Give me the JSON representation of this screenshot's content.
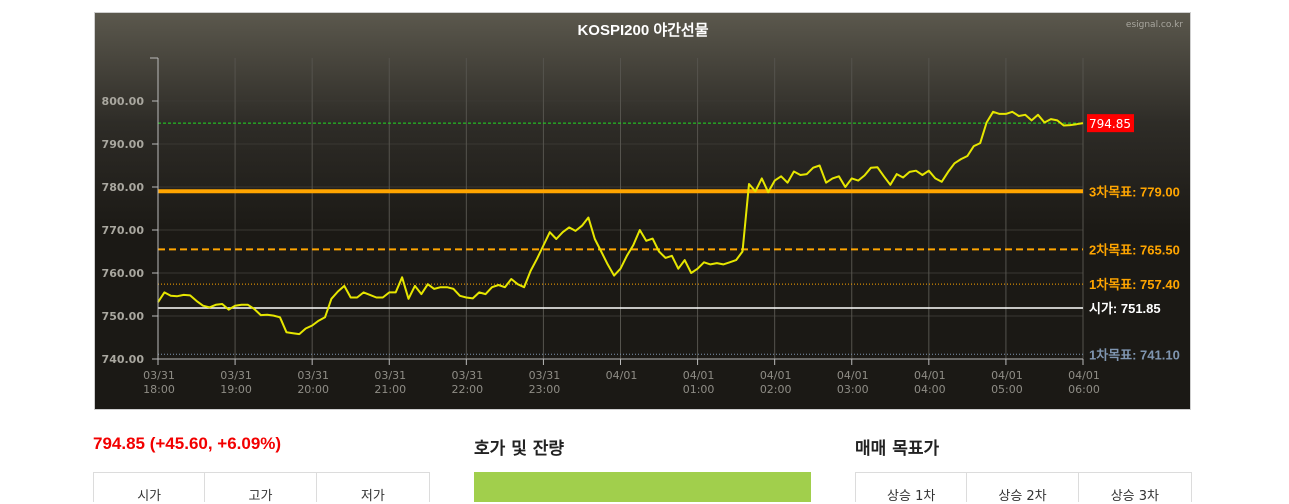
{
  "chart": {
    "title": "KOSPI200 야간선물",
    "watermark": "esignal.co.kr"
  },
  "chart_data": {
    "type": "line",
    "title": "KOSPI200 야간선물",
    "ylim": [
      740,
      810
    ],
    "yticks": [
      "740.00",
      "750.00",
      "760.00",
      "770.00",
      "780.00",
      "790.00",
      "800.00"
    ],
    "ytick_values": [
      740,
      750,
      760,
      770,
      780,
      790,
      800
    ],
    "xticks": [
      {
        "date": "03/31",
        "time": "18:00"
      },
      {
        "date": "03/31",
        "time": "19:00"
      },
      {
        "date": "03/31",
        "time": "20:00"
      },
      {
        "date": "03/31",
        "time": "21:00"
      },
      {
        "date": "03/31",
        "time": "22:00"
      },
      {
        "date": "03/31",
        "time": "23:00"
      },
      {
        "date": "04/01",
        "time": ""
      },
      {
        "date": "04/01",
        "time": "01:00"
      },
      {
        "date": "04/01",
        "time": "02:00"
      },
      {
        "date": "04/01",
        "time": "03:00"
      },
      {
        "date": "04/01",
        "time": "04:00"
      },
      {
        "date": "04/01",
        "time": "05:00"
      },
      {
        "date": "04/01",
        "time": "06:00"
      }
    ],
    "grid": true,
    "line_color": "#e6e600",
    "series_y": [
      753.2,
      755.5,
      754.7,
      754.6,
      754.9,
      754.8,
      753.5,
      752.4,
      752,
      752.6,
      752.8,
      751.5,
      752.4,
      752.6,
      752.6,
      751.6,
      750.2,
      750.3,
      750.1,
      749.7,
      746.2,
      746,
      745.8,
      747.1,
      747.8,
      748.9,
      749.7,
      754,
      755.7,
      757,
      754.3,
      754.3,
      755.5,
      754.9,
      754.3,
      754.3,
      755.5,
      755.5,
      759,
      754,
      757,
      755.1,
      757.4,
      756.3,
      756.7,
      756.7,
      756.3,
      754.7,
      754.3,
      754.1,
      755.5,
      755.1,
      756.7,
      757.2,
      756.7,
      758.6,
      757.4,
      756.7,
      760.5,
      763.3,
      766.4,
      769.5,
      767.9,
      769.5,
      770.6,
      769.8,
      771,
      772.9,
      767.9,
      765,
      762,
      759.4,
      761,
      764,
      766.5,
      770,
      767.5,
      768,
      765,
      763.5,
      764,
      761,
      763,
      760,
      761,
      762.5,
      762,
      762.3,
      762,
      762.5,
      763,
      765,
      780.7,
      779,
      782,
      778.8,
      781.5,
      782.5,
      781,
      783.6,
      782.8,
      783,
      784.5,
      785,
      781,
      782,
      782.5,
      780,
      782,
      781.5,
      782.7,
      784.5,
      784.6,
      782.5,
      780.5,
      783,
      782.2,
      783.5,
      783.8,
      782.8,
      783.8,
      782,
      781.2,
      783.5,
      785.5,
      786.5,
      787.2,
      789.5,
      790.2,
      795,
      797.5,
      797,
      797,
      797.5,
      796.5,
      796.8,
      795.5,
      796.8,
      795,
      795.8,
      795.5,
      794.3,
      794.4,
      794.6,
      794.85
    ],
    "series_x_range": [
      "03/31 18:00",
      "04/01 06:00"
    ],
    "current": {
      "value": 794.85,
      "label": "794.85",
      "color": "#ff0000",
      "line_color": "#22dd22"
    },
    "reference_lines": [
      {
        "label": "3차목표: 779.00",
        "value": 779.0,
        "color": "#ffa500",
        "style": "solid-thick"
      },
      {
        "label": "2차목표: 765.50",
        "value": 765.5,
        "color": "#ffa500",
        "style": "dashed"
      },
      {
        "label": "1차목표: 757.40",
        "value": 757.4,
        "color": "#ffa500",
        "style": "dotted"
      },
      {
        "label": "시가: 751.85",
        "value": 751.85,
        "color": "#ffffff",
        "style": "solid"
      },
      {
        "label": "1차목표: 741.10",
        "value": 741.1,
        "color": "#7f95b0",
        "style": "dotted"
      }
    ]
  },
  "summary": {
    "price_text": "794.85 (+45.60, +6.09%)",
    "price_color": "#f20000",
    "table_headers": [
      "시가",
      "고가",
      "저가"
    ]
  },
  "orderbook": {
    "title": "호가 및 잔량",
    "bar_color": "#a1cf4c"
  },
  "targets": {
    "title": "매매 목표가",
    "table_headers": [
      "상승 1차",
      "상승 2차",
      "상승 3차"
    ]
  }
}
